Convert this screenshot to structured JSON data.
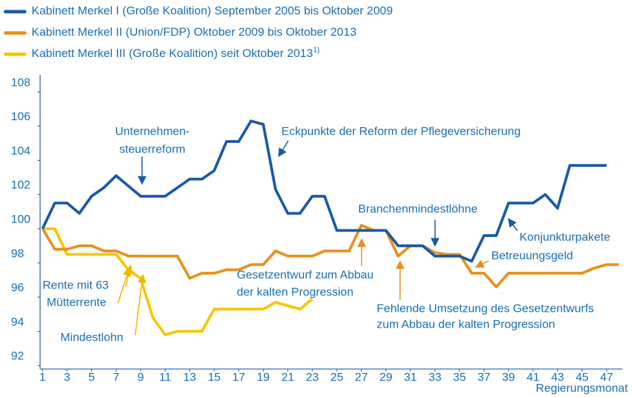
{
  "chart_data": {
    "type": "line",
    "x_label": "Regierungsmonat",
    "xlim": [
      0.8,
      48.3
    ],
    "xticks": [
      1,
      3,
      5,
      7,
      9,
      11,
      13,
      15,
      17,
      19,
      21,
      23,
      25,
      27,
      29,
      31,
      33,
      35,
      37,
      39,
      41,
      43,
      45,
      47
    ],
    "ylim": [
      91.8,
      109
    ],
    "yticks": [
      92,
      94,
      96,
      98,
      100,
      102,
      104,
      106,
      108
    ],
    "series": [
      {
        "name": "Kabinett Merkel I (Große Koalition) September 2005 bis Oktober 2009",
        "color": "#1a5aa6",
        "x": [
          1,
          2,
          3,
          4,
          5,
          6,
          7,
          8,
          9,
          10,
          11,
          12,
          13,
          14,
          15,
          16,
          17,
          18,
          19,
          20,
          21,
          22,
          23,
          24,
          25,
          26,
          27,
          28,
          29,
          30,
          31,
          32,
          33,
          34,
          35,
          36,
          37,
          38,
          39,
          40,
          41,
          42,
          43,
          44,
          45,
          46,
          47
        ],
        "values": [
          100,
          101.5,
          101.5,
          100.9,
          101.9,
          102.4,
          103.1,
          102.5,
          101.9,
          101.9,
          101.9,
          102.4,
          102.9,
          102.9,
          103.4,
          105.1,
          105.1,
          106.3,
          106.1,
          102.3,
          100.9,
          100.9,
          101.9,
          101.9,
          99.9,
          99.9,
          99.9,
          99.9,
          99.9,
          99.0,
          99.0,
          99.0,
          98.4,
          98.4,
          98.4,
          98.1,
          99.6,
          99.6,
          101.5,
          101.5,
          101.5,
          102.0,
          101.2,
          103.7,
          103.7,
          103.7,
          103.7
        ]
      },
      {
        "name": "Kabinett Merkel II (Union/FDP) Oktober 2009 bis Oktober 2013",
        "color": "#e8901e",
        "x": [
          1,
          2,
          3,
          4,
          5,
          6,
          7,
          8,
          9,
          10,
          11,
          12,
          13,
          14,
          15,
          16,
          17,
          18,
          19,
          20,
          21,
          22,
          23,
          24,
          25,
          26,
          27,
          28,
          29,
          30,
          31,
          32,
          33,
          34,
          35,
          36,
          37,
          38,
          39,
          40,
          41,
          42,
          43,
          44,
          45,
          46,
          47,
          48
        ],
        "values": [
          100,
          98.8,
          98.8,
          99.0,
          99.0,
          98.7,
          98.7,
          98.4,
          98.4,
          98.4,
          98.4,
          98.4,
          97.1,
          97.4,
          97.4,
          97.6,
          97.6,
          97.9,
          97.9,
          98.7,
          98.4,
          98.4,
          98.4,
          98.7,
          98.7,
          98.7,
          100.2,
          99.9,
          99.9,
          98.4,
          99.0,
          99.0,
          98.6,
          98.5,
          98.5,
          97.4,
          97.4,
          96.6,
          97.4,
          97.4,
          97.4,
          97.4,
          97.4,
          97.4,
          97.4,
          97.7,
          97.9,
          97.9
        ]
      },
      {
        "name": "Kabinett Merkel III (Große Koalition) seit Oktober 2013",
        "note": "1)",
        "color": "#f5c800",
        "x": [
          1,
          2,
          3,
          4,
          5,
          6,
          7,
          8,
          9,
          10,
          11,
          12,
          13,
          14,
          15,
          16,
          17,
          18,
          19,
          20,
          21,
          22,
          23
        ],
        "values": [
          100,
          100,
          98.5,
          98.5,
          98.5,
          98.5,
          98.5,
          97.6,
          97.1,
          94.8,
          93.8,
          94.0,
          94.0,
          94.0,
          95.3,
          95.3,
          95.3,
          95.3,
          95.3,
          95.7,
          95.5,
          95.3,
          95.9
        ]
      }
    ],
    "annotations": [
      {
        "lines": [
          "Unternehmen-",
          "steuerreform"
        ]
      },
      {
        "lines": [
          "Eckpunkte der Reform der Pflegeversicherung"
        ]
      },
      {
        "lines": [
          "Branchenmindestlöhne"
        ]
      },
      {
        "lines": [
          "Konjunkturpakete"
        ]
      },
      {
        "lines": [
          "Betreuungsgeld"
        ]
      },
      {
        "lines": [
          "Gesetzentwurf zum Abbau",
          "der kalten Progression"
        ]
      },
      {
        "lines": [
          "Fehlende Umsetzung des Gesetzentwurfs",
          "zum Abbau der kalten Progression"
        ]
      },
      {
        "lines": [
          "Rente mit 63"
        ]
      },
      {
        "lines": [
          "Mütterrente"
        ]
      },
      {
        "lines": [
          "Mindestlohn"
        ]
      }
    ]
  }
}
